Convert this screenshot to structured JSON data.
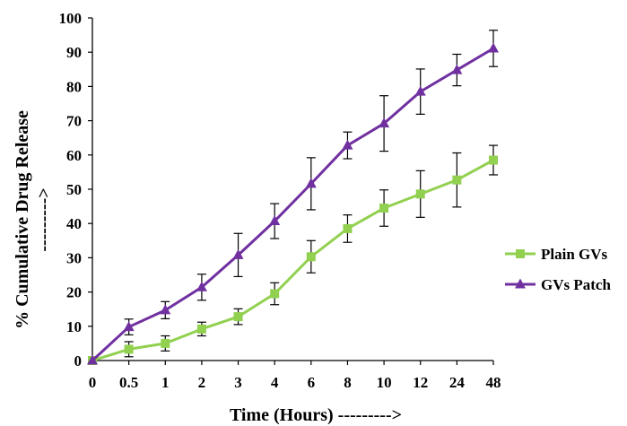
{
  "chart_data": {
    "type": "line",
    "xlabel": "Time (Hours) --------->",
    "ylabel": "% Cumulative Drug Release",
    "ylabel_arrow": "--------->",
    "categories": [
      "0",
      "0.5",
      "1",
      "2",
      "3",
      "4",
      "6",
      "8",
      "10",
      "12",
      "24",
      "48"
    ],
    "ylim": [
      0,
      100
    ],
    "yticks": [
      0,
      10,
      20,
      30,
      40,
      50,
      60,
      70,
      80,
      90,
      100
    ],
    "grid": false,
    "legend_position": "right",
    "series": [
      {
        "name": "Plain GVs",
        "color": "#92d050",
        "marker": "square",
        "values": [
          0,
          3.3,
          5,
          9.2,
          12.8,
          19.5,
          30.3,
          38.5,
          44.5,
          48.6,
          52.7,
          58.5
        ],
        "errors": [
          0,
          2.2,
          2.2,
          2,
          2.3,
          3.2,
          4.7,
          4,
          5.3,
          6.8,
          7.9,
          4.3
        ]
      },
      {
        "name": "GVs Patch",
        "color": "#7030a0",
        "marker": "triangle",
        "values": [
          0,
          9.8,
          14.7,
          21.4,
          30.8,
          40.7,
          51.6,
          62.8,
          69.2,
          78.5,
          84.8,
          91.1
        ],
        "errors": [
          0,
          2.3,
          2.5,
          3.8,
          6.3,
          5.1,
          7.6,
          3.9,
          8.1,
          6.6,
          4.6,
          5.3
        ]
      }
    ]
  }
}
